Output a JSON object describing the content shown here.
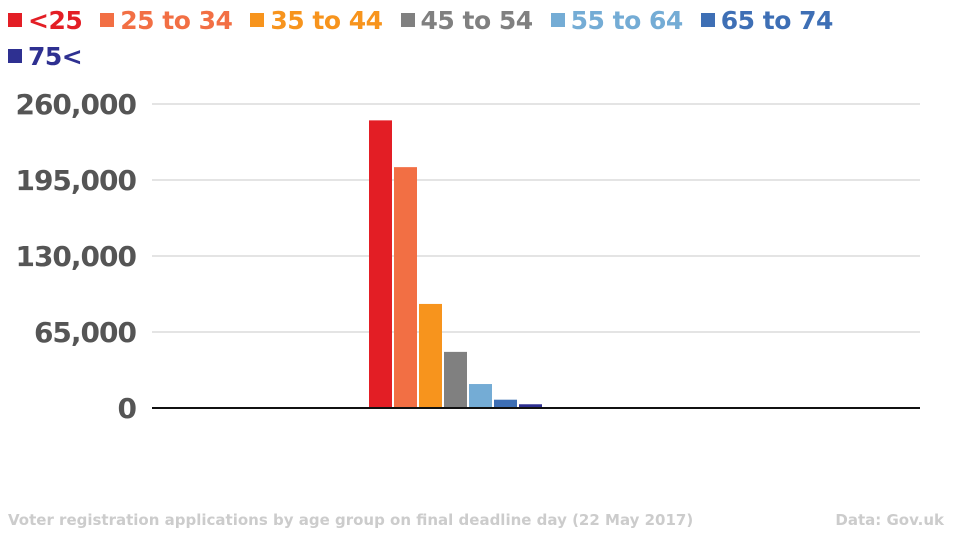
{
  "chart_data": {
    "type": "bar",
    "title": "Voter registration applications by age group on final deadline day (22 May 2017)",
    "source": "Data: Gov.uk",
    "xlabel": "",
    "ylabel": "",
    "ylim": [
      0,
      260000
    ],
    "yticks": [
      "0",
      "65,000",
      "130,000",
      "195,000",
      "260,000"
    ],
    "ytick_values": [
      0,
      65000,
      130000,
      195000,
      260000
    ],
    "grid": true,
    "legend_placement": "top-left",
    "categories": [
      "22 May 2017"
    ],
    "series": [
      {
        "name": "<25",
        "color": "#e31e25",
        "values": [
          246000
        ]
      },
      {
        "name": "25 to 34",
        "color": "#f26f44",
        "values": [
          206000
        ]
      },
      {
        "name": "35 to 44",
        "color": "#f7941d",
        "values": [
          89000
        ]
      },
      {
        "name": "45 to 54",
        "color": "#808080",
        "values": [
          48000
        ]
      },
      {
        "name": "55 to 64",
        "color": "#74acd5",
        "values": [
          20500
        ]
      },
      {
        "name": "65 to 74",
        "color": "#3e6fb5",
        "values": [
          7100
        ]
      },
      {
        "name": "75<",
        "color": "#2e3091",
        "values": [
          3200
        ]
      }
    ]
  }
}
